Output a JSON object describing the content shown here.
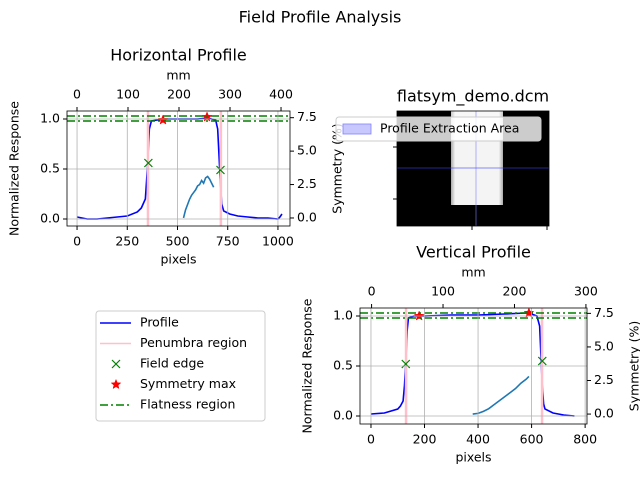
{
  "title": "Field Profile Analysis",
  "chart_data": [
    {
      "type": "line",
      "title": "Horizontal Profile",
      "xlabel": "pixels",
      "ylabel": "Normalized Response",
      "x2label": "mm",
      "y2label": "Symmetry (%)",
      "xlim": [
        -50,
        1060
      ],
      "xticks": [
        0,
        250,
        500,
        750,
        1000
      ],
      "x2lim": [
        -19.6,
        417.6
      ],
      "x2ticks": [
        0,
        100,
        200,
        300,
        400
      ],
      "ylim": [
        -0.07,
        1.08
      ],
      "yticks": [
        {
          "value": 0,
          "label": "0.0"
        },
        0.5,
        {
          "value": 1,
          "label": "1.0"
        }
      ],
      "y2lim": [
        -0.6,
        8.0
      ],
      "y2ticks": [
        {
          "value": 0,
          "label": "0.0"
        },
        2.5,
        {
          "value": 5,
          "label": "5.0"
        },
        7.5
      ],
      "grid": true,
      "series": [
        {
          "name": "Profile",
          "color": "#0000ff",
          "x": [
            0,
            50,
            100,
            150,
            200,
            250,
            300,
            320,
            340,
            350,
            360,
            370,
            400,
            450,
            500,
            550,
            600,
            650,
            690,
            700,
            710,
            720,
            730,
            760,
            800,
            850,
            900,
            950,
            1000,
            1010,
            1020
          ],
          "values": [
            0.02,
            0.0,
            0.0,
            0.01,
            0.02,
            0.03,
            0.07,
            0.11,
            0.2,
            0.5,
            0.9,
            0.98,
            0.99,
            1.0,
            1.0,
            1.0,
            1.0,
            1.01,
            0.99,
            0.9,
            0.5,
            0.15,
            0.08,
            0.05,
            0.03,
            0.02,
            0.01,
            0.01,
            0.0,
            0.02,
            0.05
          ]
        },
        {
          "name": "Penumbra region",
          "color": "#ffc0cb",
          "orientation": "vertical",
          "x": [
            353,
            716
          ]
        },
        {
          "name": "Field edge",
          "color": "#008000",
          "marker": "x",
          "x": [
            355,
            714
          ],
          "values": [
            0.56,
            0.49
          ]
        },
        {
          "name": "Symmetry max",
          "color": "#ff0000",
          "marker": "star",
          "x": [
            428,
            647
          ],
          "values": [
            0.99,
            1.02
          ]
        },
        {
          "name": "Flatness region",
          "color": "#008000",
          "linestyle": "dashdot",
          "orientation": "horizontal",
          "values": [
            0.98,
            1.03
          ]
        },
        {
          "color": "#1f77b4",
          "axis": "y2",
          "x": [
            530,
            540,
            550,
            560,
            570,
            580,
            590,
            600,
            610,
            620,
            630,
            640,
            650,
            660,
            670,
            680
          ],
          "values": [
            0.0,
            0.6,
            1.0,
            1.4,
            1.7,
            1.9,
            2.1,
            2.4,
            2.5,
            2.8,
            2.6,
            3.0,
            3.1,
            2.9,
            2.6,
            2.3
          ]
        }
      ]
    },
    {
      "type": "image",
      "title": "flatsym_demo.dcm",
      "series": [
        {
          "name": "Profile Extraction Area",
          "color": "#c8c8ff"
        }
      ]
    },
    {
      "type": "line",
      "title": "Vertical Profile",
      "xlabel": "pixels",
      "ylabel": "Normalized Response",
      "x2label": "mm",
      "y2label": "Symmetry (%)",
      "xlim": [
        -41,
        807
      ],
      "xticks": [
        0,
        200,
        400,
        600,
        800
      ],
      "x2lim": [
        -16.2,
        301.5
      ],
      "x2ticks": [
        0,
        100,
        200,
        300
      ],
      "ylim": [
        -0.08,
        1.08
      ],
      "yticks": [
        {
          "value": 0,
          "label": "0.0"
        },
        0.5,
        {
          "value": 1,
          "label": "1.0"
        }
      ],
      "y2lim": [
        -0.74,
        7.9
      ],
      "y2ticks": [
        {
          "value": 0,
          "label": "0.0"
        },
        2.5,
        {
          "value": 5,
          "label": "5.0"
        },
        7.5
      ],
      "grid": true,
      "series": [
        {
          "name": "Profile",
          "color": "#0000ff",
          "x": [
            0,
            50,
            100,
            110,
            120,
            125,
            130,
            135,
            140,
            160,
            200,
            300,
            400,
            500,
            580,
            600,
            620,
            630,
            635,
            640,
            645,
            650,
            680,
            720,
            760
          ],
          "values": [
            0.02,
            0.03,
            0.07,
            0.1,
            0.15,
            0.3,
            0.52,
            0.85,
            0.98,
            1.0,
            1.0,
            1.01,
            1.01,
            1.02,
            1.03,
            1.02,
            1.0,
            0.9,
            0.6,
            0.3,
            0.12,
            0.07,
            0.03,
            0.01,
            0.0
          ]
        },
        {
          "name": "Penumbra region",
          "color": "#ffc0cb",
          "orientation": "vertical",
          "x": [
            131,
            639
          ]
        },
        {
          "name": "Field edge",
          "color": "#008000",
          "marker": "x",
          "x": [
            130,
            640
          ],
          "values": [
            0.52,
            0.55
          ]
        },
        {
          "name": "Symmetry max",
          "color": "#ff0000",
          "marker": "star",
          "x": [
            180,
            590
          ],
          "values": [
            1.0,
            1.03
          ]
        },
        {
          "name": "Flatness region",
          "color": "#008000",
          "linestyle": "dashdot",
          "orientation": "horizontal",
          "values": [
            0.98,
            1.03
          ]
        },
        {
          "color": "#1f77b4",
          "axis": "y2",
          "x": [
            380,
            400,
            420,
            440,
            460,
            480,
            500,
            520,
            540,
            560,
            580,
            590
          ],
          "values": [
            0.0,
            0.05,
            0.2,
            0.4,
            0.7,
            1.0,
            1.3,
            1.6,
            1.9,
            2.3,
            2.6,
            2.8
          ]
        }
      ]
    }
  ]
}
